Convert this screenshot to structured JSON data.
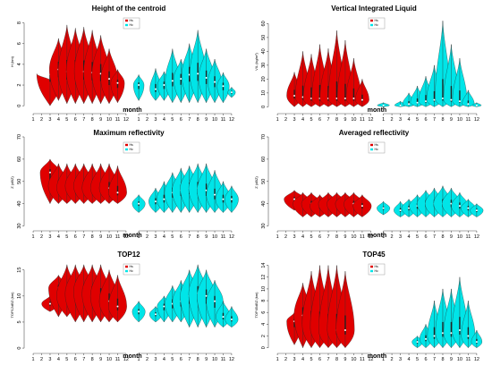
{
  "colors": {
    "red": "#e00000",
    "cyan": "#00e5e8",
    "axis": "#555555"
  },
  "chart_data": [
    {
      "type": "violin",
      "title": "Height of the centroid",
      "xlabel": "month",
      "ylabel": "H (km)",
      "ylim": [
        -0.5,
        9
      ],
      "yticks": [
        0,
        2,
        4,
        6,
        8
      ],
      "series": [
        {
          "name": "Hs",
          "color": "red",
          "values": [
            [
              3,
              0,
              2.5,
              3.1,
              3.5
            ],
            [
              4,
              0.5,
              6.5,
              3.5,
              2.4
            ],
            [
              5,
              0.2,
              7.8,
              3.3,
              2.3
            ],
            [
              6,
              0.2,
              7.5,
              3.4,
              2.4
            ],
            [
              7,
              0.2,
              7.6,
              3.3,
              2.5
            ],
            [
              8,
              0.2,
              7.3,
              3.2,
              2.3
            ],
            [
              9,
              0.2,
              6.8,
              3.1,
              2.3
            ],
            [
              10,
              0.2,
              5.5,
              2.6,
              2.2
            ],
            [
              11,
              0.3,
              3.5,
              2.2,
              1.8
            ]
          ]
        },
        {
          "name": "Hc",
          "color": "cyan",
          "values": [
            [
              1,
              0.5,
              3.0,
              2.0,
              1.4
            ],
            [
              3,
              0.5,
              3.6,
              1.6,
              1.5
            ],
            [
              4,
              0.5,
              3.3,
              2.0,
              1.7
            ],
            [
              5,
              0.3,
              5.5,
              2.4,
              1.9
            ],
            [
              6,
              0.3,
              4.5,
              2.6,
              1.9
            ],
            [
              7,
              0.3,
              6.0,
              3.0,
              2.0
            ],
            [
              8,
              0.3,
              7.3,
              3.1,
              2.1
            ],
            [
              9,
              0.3,
              5.5,
              2.7,
              2.0
            ],
            [
              10,
              0.3,
              4.5,
              2.3,
              1.8
            ],
            [
              11,
              0.3,
              3.2,
              1.9,
              1.6
            ],
            [
              12,
              0.8,
              1.8,
              1.3,
              1.0
            ]
          ]
        }
      ]
    },
    {
      "type": "violin",
      "title": "Vertical Integrated Liquid",
      "xlabel": "month",
      "ylabel": "VIL (kg/m²)",
      "ylim": [
        -3,
        68
      ],
      "yticks": [
        0,
        10,
        20,
        30,
        40,
        50,
        60
      ],
      "series": [
        {
          "name": "Hs",
          "color": "red",
          "values": [
            [
              3,
              0,
              25,
              8,
              2.0
            ],
            [
              4,
              0,
              40,
              7,
              2.0
            ],
            [
              5,
              0,
              38,
              6,
              2.1
            ],
            [
              6,
              0,
              45,
              6,
              2.1
            ],
            [
              7,
              0,
              42,
              6,
              2.2
            ],
            [
              8,
              0,
              55,
              6,
              2.2
            ],
            [
              9,
              0,
              48,
              6,
              2.1
            ],
            [
              10,
              0,
              35,
              6,
              2.0
            ],
            [
              11,
              0,
              20,
              5,
              1.8
            ]
          ]
        },
        {
          "name": "Hc",
          "color": "cyan",
          "values": [
            [
              1,
              0,
              3,
              1,
              1.6
            ],
            [
              3,
              0,
              4,
              1,
              1.5
            ],
            [
              4,
              0,
              10,
              2,
              1.6
            ],
            [
              5,
              0,
              15,
              3,
              1.8
            ],
            [
              6,
              0,
              22,
              4,
              1.9
            ],
            [
              7,
              0,
              30,
              5,
              2.0
            ],
            [
              8,
              0,
              62,
              6,
              2.0
            ],
            [
              9,
              0,
              45,
              5,
              2.0
            ],
            [
              10,
              0,
              35,
              4,
              1.9
            ],
            [
              11,
              0,
              12,
              2,
              1.6
            ],
            [
              12,
              0,
              3,
              1,
              1.2
            ]
          ]
        }
      ]
    },
    {
      "type": "violin",
      "title": "Maximum reflectivity",
      "xlabel": "month",
      "ylabel": "Z (dBZ)",
      "ylim": [
        29,
        70
      ],
      "yticks": [
        30,
        40,
        50,
        60,
        70
      ],
      "series": [
        {
          "name": "Hs",
          "color": "red",
          "values": [
            [
              3,
              40,
              60,
              54,
              2.6
            ],
            [
              4,
              40,
              58,
              48,
              2.7
            ],
            [
              5,
              40,
              58,
              47,
              2.7
            ],
            [
              6,
              40,
              58,
              48,
              2.7
            ],
            [
              7,
              40,
              58,
              48,
              2.7
            ],
            [
              8,
              40,
              58,
              47,
              2.7
            ],
            [
              9,
              40,
              58,
              47,
              2.7
            ],
            [
              10,
              40,
              58,
              47,
              2.6
            ],
            [
              11,
              40,
              57,
              45,
              2.4
            ]
          ]
        },
        {
          "name": "Hc",
          "color": "cyan",
          "values": [
            [
              1,
              36,
              44,
              40,
              1.7
            ],
            [
              3,
              36,
              47,
              41,
              1.8
            ],
            [
              4,
              36,
              50,
              42,
              1.9
            ],
            [
              5,
              36,
              54,
              45,
              2.1
            ],
            [
              6,
              36,
              56,
              46,
              2.3
            ],
            [
              7,
              36,
              57,
              47,
              2.4
            ],
            [
              8,
              36,
              58,
              47,
              2.4
            ],
            [
              9,
              36,
              58,
              46,
              2.4
            ],
            [
              10,
              36,
              55,
              44,
              2.2
            ],
            [
              11,
              36,
              50,
              42,
              2.0
            ],
            [
              12,
              36,
              48,
              42,
              1.8
            ]
          ]
        }
      ]
    },
    {
      "type": "violin",
      "title": "Averaged reflectivity",
      "xlabel": "month",
      "ylabel": "Z (dBZ)",
      "ylim": [
        29,
        70
      ],
      "yticks": [
        30,
        40,
        50,
        60,
        70
      ],
      "series": [
        {
          "name": "Hs",
          "color": "red",
          "values": [
            [
              3,
              37,
              46,
              42,
              2.7
            ],
            [
              4,
              34,
              45,
              40,
              2.6
            ],
            [
              5,
              34,
              45,
              40,
              2.6
            ],
            [
              6,
              34,
              44,
              39,
              2.6
            ],
            [
              7,
              34,
              45,
              40,
              2.6
            ],
            [
              8,
              34,
              45,
              40,
              2.6
            ],
            [
              9,
              34,
              45,
              40,
              2.6
            ],
            [
              10,
              34,
              45,
              40,
              2.6
            ],
            [
              11,
              34,
              44,
              39,
              2.4
            ]
          ]
        },
        {
          "name": "Hc",
          "color": "cyan",
          "values": [
            [
              1,
              35,
              41,
              38,
              1.7
            ],
            [
              3,
              34,
              41,
              37,
              1.7
            ],
            [
              4,
              34,
              42,
              38,
              1.9
            ],
            [
              5,
              34,
              44,
              39,
              2.1
            ],
            [
              6,
              34,
              46,
              40,
              2.3
            ],
            [
              7,
              34,
              47,
              40,
              2.4
            ],
            [
              8,
              34,
              48,
              40,
              2.4
            ],
            [
              9,
              34,
              47,
              40,
              2.4
            ],
            [
              10,
              34,
              45,
              39,
              2.2
            ],
            [
              11,
              34,
              42,
              38,
              1.9
            ],
            [
              12,
              34,
              40,
              37,
              1.7
            ]
          ]
        }
      ]
    },
    {
      "type": "violin",
      "title": "TOP12",
      "xlabel": "month",
      "ylabel": "TOP12dBZ (km)",
      "ylim": [
        -0.5,
        17
      ],
      "yticks": [
        0,
        5,
        10,
        15
      ],
      "series": [
        {
          "name": "Hs",
          "color": "red",
          "values": [
            [
              3,
              7,
              10,
              8.5,
              2.2
            ],
            [
              4,
              6,
              14,
              11.5,
              2.6
            ],
            [
              5,
              6,
              16,
              10,
              2.7
            ],
            [
              6,
              5,
              16,
              10.5,
              2.7
            ],
            [
              7,
              5,
              16,
              11,
              2.7
            ],
            [
              8,
              5,
              16,
              10.5,
              2.7
            ],
            [
              9,
              5,
              16,
              10,
              2.7
            ],
            [
              10,
              5,
              15,
              9,
              2.6
            ],
            [
              11,
              5,
              14,
              8,
              2.4
            ]
          ]
        },
        {
          "name": "Hc",
          "color": "cyan",
          "values": [
            [
              1,
              5,
              9,
              7,
              1.7
            ],
            [
              3,
              5,
              8,
              6.5,
              1.6
            ],
            [
              4,
              5,
              10,
              8,
              1.8
            ],
            [
              5,
              5,
              12,
              8.5,
              2.0
            ],
            [
              6,
              5,
              13,
              9,
              2.2
            ],
            [
              7,
              4,
              15,
              10,
              2.4
            ],
            [
              8,
              4,
              16,
              10.5,
              2.4
            ],
            [
              9,
              4,
              15,
              10,
              2.4
            ],
            [
              10,
              4,
              13,
              9,
              2.2
            ],
            [
              11,
              4,
              9,
              6,
              1.9
            ],
            [
              12,
              4,
              8,
              5.5,
              1.7
            ]
          ]
        }
      ]
    },
    {
      "type": "violin",
      "title": "TOP45",
      "xlabel": "month",
      "ylabel": "TOP45dBZ (km)",
      "ylim": [
        -0.5,
        15
      ],
      "yticks": [
        0,
        2,
        4,
        6,
        8,
        10,
        12,
        14
      ],
      "series": [
        {
          "name": "Hs",
          "color": "red",
          "values": [
            [
              3,
              0.5,
              6,
              4.5,
              2.0
            ],
            [
              4,
              0,
              11,
              5.5,
              2.3
            ],
            [
              5,
              0,
              13,
              4,
              2.4
            ],
            [
              6,
              0,
              14,
              3.5,
              2.5
            ],
            [
              7,
              0,
              14,
              3,
              2.5
            ],
            [
              8,
              0,
              14,
              3,
              2.5
            ],
            [
              9,
              0,
              13,
              3,
              2.4
            ]
          ]
        },
        {
          "name": "Hc",
          "color": "cyan",
          "values": [
            [
              5,
              0,
              2,
              1,
              1.4
            ],
            [
              6,
              0,
              4,
              1.5,
              1.6
            ],
            [
              7,
              0,
              8,
              2,
              1.8
            ],
            [
              8,
              0,
              10,
              2.5,
              1.9
            ],
            [
              9,
              0,
              10,
              2.5,
              2.0
            ],
            [
              10,
              0,
              12,
              3,
              2.0
            ],
            [
              11,
              0,
              8,
              2,
              1.8
            ],
            [
              12,
              0,
              3,
              1,
              1.4
            ]
          ]
        }
      ]
    }
  ]
}
